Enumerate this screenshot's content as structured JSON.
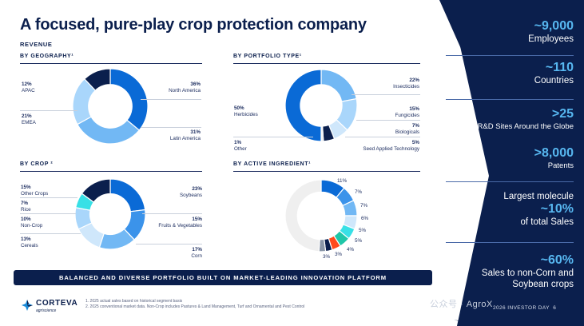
{
  "title": "A focused, pure-play crop protection company",
  "revenue_label": "REVENUE",
  "colors": {
    "navy": "#0b1f4d",
    "blue1": "#0a6ad6",
    "blue2": "#3b93ea",
    "blue3": "#72b8f4",
    "blue4": "#a9d6fb",
    "cyan": "#38e0e6",
    "light": "#cfe7fb",
    "grey": "#eeeeee"
  },
  "geography": {
    "heading": "BY GEOGRAPHY¹",
    "labels": [
      {
        "pct": "36%",
        "name": "North America"
      },
      {
        "pct": "31%",
        "name": "Latin America"
      },
      {
        "pct": "21%",
        "name": "EMEA"
      },
      {
        "pct": "12%",
        "name": "APAC"
      }
    ]
  },
  "portfolio": {
    "heading": "BY PORTFOLIO TYPE¹",
    "labels": [
      {
        "pct": "22%",
        "name": "Insecticides"
      },
      {
        "pct": "15%",
        "name": "Fungicides"
      },
      {
        "pct": "7%",
        "name": "Biologicals"
      },
      {
        "pct": "5%",
        "name": "Seed Applied Technology"
      },
      {
        "pct": "1%",
        "name": "Other"
      },
      {
        "pct": "50%",
        "name": "Herbicides"
      }
    ]
  },
  "crop": {
    "heading": "BY CROP ²",
    "labels": [
      {
        "pct": "23%",
        "name": "Soybeans"
      },
      {
        "pct": "15%",
        "name": "Fruits & Vegetables"
      },
      {
        "pct": "17%",
        "name": "Corn"
      },
      {
        "pct": "13%",
        "name": "Cereals"
      },
      {
        "pct": "10%",
        "name": "Non-Crop"
      },
      {
        "pct": "7%",
        "name": "Rice"
      },
      {
        "pct": "15%",
        "name": "Other Crops"
      }
    ]
  },
  "active_ingredient": {
    "heading": "BY ACTIVE INGREDIENT¹",
    "labels": [
      "11%",
      "7%",
      "7%",
      "6%",
      "5%",
      "5%",
      "4%",
      "3%",
      "3%"
    ]
  },
  "chart_data": [
    {
      "type": "pie",
      "title": "BY GEOGRAPHY¹",
      "categories": [
        "North America",
        "Latin America",
        "EMEA",
        "APAC"
      ],
      "values": [
        36,
        31,
        21,
        12
      ],
      "colors": [
        "#0a6ad6",
        "#72b8f4",
        "#a9d6fb",
        "#0b1f4d"
      ]
    },
    {
      "type": "pie",
      "title": "BY PORTFOLIO TYPE¹",
      "categories": [
        "Insecticides",
        "Fungicides",
        "Biologicals",
        "Seed Applied Technology",
        "Other",
        "Herbicides"
      ],
      "values": [
        22,
        15,
        7,
        5,
        1,
        50
      ],
      "colors": [
        "#72b8f4",
        "#a9d6fb",
        "#cfe7fb",
        "#0b1f4d",
        "#e9edf3",
        "#0a6ad6"
      ]
    },
    {
      "type": "pie",
      "title": "BY CROP ²",
      "categories": [
        "Soybeans",
        "Fruits & Vegetables",
        "Corn",
        "Cereals",
        "Non-Crop",
        "Rice",
        "Other Crops"
      ],
      "values": [
        23,
        15,
        17,
        13,
        10,
        7,
        15
      ],
      "colors": [
        "#0a6ad6",
        "#3b93ea",
        "#72b8f4",
        "#cfe7fb",
        "#a9d6fb",
        "#38e0e6",
        "#0b1f4d"
      ]
    },
    {
      "type": "pie",
      "title": "BY ACTIVE INGREDIENT¹",
      "categories": [
        "",
        "",
        "",
        "",
        "",
        "",
        "",
        "",
        "",
        ""
      ],
      "values": [
        11,
        7,
        7,
        6,
        5,
        5,
        4,
        3,
        3,
        49
      ],
      "colors": [
        "#0a6ad6",
        "#3b93ea",
        "#72b8f4",
        "#cfe7fb",
        "#38e0e6",
        "#1fc6a8",
        "#ff4a1c",
        "#0b1f4d",
        "#8a96a8",
        "#efefef"
      ]
    }
  ],
  "banner": "BALANCED AND DIVERSE PORTFOLIO BUILT ON MARKET-LEADING INNOVATION PLATFORM",
  "logo": {
    "name": "CORTEVA",
    "sub": "agriscience"
  },
  "footnotes": {
    "line1": "1. 2025 actual sales based on historical segment basis",
    "line2": "2. 2025 conventional market data. Non-Crop includes Pastures & Land Management, Turf and Ornamental and Pest Control"
  },
  "stats": [
    {
      "big": "~9,000",
      "sub": "Employees"
    },
    {
      "big": "~110",
      "sub": "Countries"
    },
    {
      "big": ">25",
      "sub": "R&D Sites Around the Globe"
    },
    {
      "big": ">8,000",
      "sub": "Patents"
    },
    {
      "pre": "Largest molecule",
      "big": "~10%",
      "sub": "of total Sales"
    },
    {
      "big": "~60%",
      "sub": "Sales to non-Corn and",
      "sub2": "Soybean crops"
    }
  ],
  "watermark": "公众号 · AgroX",
  "footer_right": "2026 INVESTOR DAY",
  "page_number": "6"
}
